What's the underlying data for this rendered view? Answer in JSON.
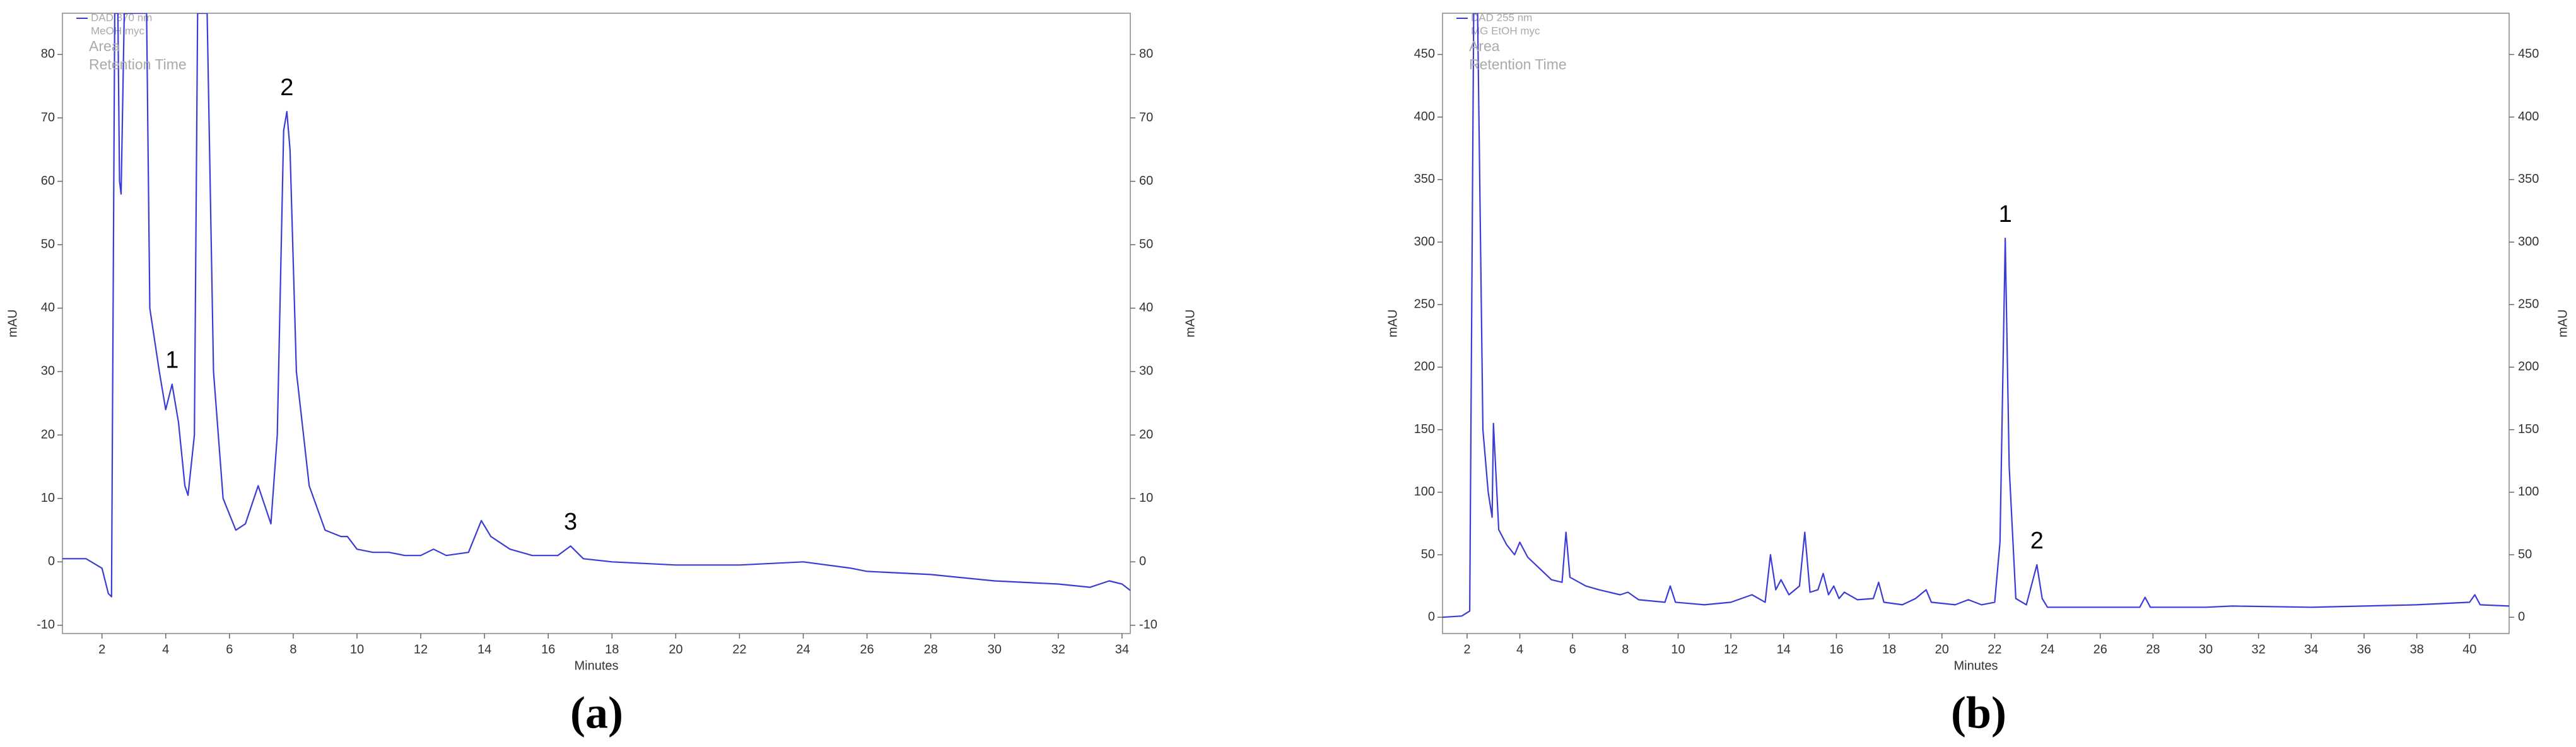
{
  "chart_data": [
    {
      "type": "line",
      "panel_label": "(a)",
      "y_label": "mAU",
      "x_label": "Minutes",
      "info": [
        "Area",
        "Retention Time"
      ],
      "xlim": [
        0.76,
        34.26
      ],
      "ylim": [
        -11.3,
        86.5
      ],
      "xticks": [
        2,
        4,
        6,
        8,
        10,
        12,
        14,
        16,
        18,
        20,
        22,
        24,
        26,
        28,
        30,
        32,
        34
      ],
      "yticks": [
        -10,
        0,
        10,
        20,
        30,
        40,
        50,
        60,
        70,
        80
      ],
      "x": [
        0.76,
        1.5,
        2.0,
        2.2,
        2.3,
        2.4,
        2.5,
        2.55,
        2.6,
        2.7,
        3.2,
        3.4,
        3.5,
        3.8,
        4.0,
        4.2,
        4.4,
        4.6,
        4.7,
        4.9,
        5.0,
        5.3,
        5.5,
        5.8,
        6.2,
        6.5,
        6.9,
        7.1,
        7.3,
        7.5,
        7.7,
        7.8,
        7.9,
        8.1,
        8.5,
        9.0,
        9.5,
        9.7,
        10.0,
        10.5,
        11,
        11.5,
        12,
        12.4,
        12.8,
        13.5,
        13.9,
        14.2,
        14.8,
        15.5,
        16.3,
        16.7,
        17.1,
        18,
        20,
        22,
        24,
        25.5,
        26,
        28,
        30,
        32,
        33,
        33.6,
        34,
        34.26
      ],
      "series": [
        {
          "name": "DAD 370 nm",
          "sample": "MeOH myc",
          "color": "#3b3bd6",
          "values": [
            0.5,
            0.5,
            -1,
            -5,
            -5.5,
            86.5,
            86.5,
            60,
            58,
            86.5,
            86.5,
            86.5,
            40,
            30,
            24,
            28,
            22,
            12,
            10.5,
            20,
            86.5,
            86.5,
            30,
            10,
            5,
            6,
            12,
            9,
            6,
            20,
            68,
            71,
            65,
            30,
            12,
            5,
            4,
            4,
            2,
            1.5,
            1.5,
            1,
            1,
            2,
            1,
            1.5,
            6.5,
            4,
            2,
            1,
            1,
            2.5,
            0.5,
            0,
            -0.5,
            -0.5,
            0,
            -1,
            -1.5,
            -2,
            -3,
            -3.5,
            -4,
            -3,
            -3.5,
            -4.5
          ]
        }
      ],
      "peak_labels": [
        {
          "text": "1",
          "x": 4.2,
          "y": 28
        },
        {
          "text": "2",
          "x": 7.8,
          "y": 71
        },
        {
          "text": "3",
          "x": 16.7,
          "y": 2.5
        }
      ]
    },
    {
      "type": "line",
      "panel_label": "(b)",
      "y_label": "mAU",
      "x_label": "Minutes",
      "info": [
        "Area",
        "Retention Time"
      ],
      "xlim": [
        1.07,
        41.5
      ],
      "ylim": [
        -13,
        483
      ],
      "xticks": [
        2,
        4,
        6,
        8,
        10,
        12,
        14,
        16,
        18,
        20,
        22,
        24,
        26,
        28,
        30,
        32,
        34,
        36,
        38,
        40
      ],
      "yticks": [
        0,
        50,
        100,
        150,
        200,
        250,
        300,
        350,
        400,
        450
      ],
      "x": [
        1.07,
        1.8,
        2.1,
        2.25,
        2.4,
        2.6,
        2.8,
        2.95,
        3.0,
        3.2,
        3.5,
        3.8,
        4,
        4.3,
        4.8,
        5.2,
        5.6,
        5.75,
        5.9,
        6.5,
        7,
        7.8,
        8.1,
        8.5,
        9.5,
        9.7,
        9.9,
        11,
        12,
        12.8,
        13.3,
        13.5,
        13.7,
        13.9,
        14.2,
        14.6,
        14.8,
        15,
        15.3,
        15.5,
        15.7,
        15.9,
        16.1,
        16.3,
        16.8,
        17.4,
        17.6,
        17.8,
        18.5,
        19,
        19.4,
        19.6,
        20.5,
        21,
        21.5,
        22.0,
        22.2,
        22.4,
        22.55,
        22.8,
        23.2,
        23.6,
        23.8,
        24,
        26,
        27.5,
        27.7,
        27.9,
        30,
        31,
        34,
        36,
        38,
        40,
        40.2,
        40.4,
        41.5
      ],
      "series": [
        {
          "name": "DAD 255 nm",
          "sample": "MG EtOH myc",
          "color": "#3b3bd6",
          "values": [
            0,
            1,
            5,
            483,
            483,
            150,
            100,
            80,
            155,
            70,
            58,
            50,
            60,
            48,
            38,
            30,
            28,
            68,
            32,
            25,
            22,
            18,
            20,
            14,
            12,
            25,
            12,
            10,
            12,
            18,
            12,
            50,
            22,
            30,
            18,
            25,
            68,
            20,
            22,
            35,
            18,
            25,
            15,
            20,
            14,
            15,
            28,
            12,
            10,
            15,
            22,
            12,
            10,
            14,
            10,
            12,
            60,
            303,
            120,
            15,
            10,
            42,
            15,
            8,
            8,
            8,
            16,
            8,
            8,
            9,
            8,
            9,
            10,
            12,
            18,
            10,
            9
          ]
        }
      ],
      "peak_labels": [
        {
          "text": "1",
          "x": 22.4,
          "y": 303
        },
        {
          "text": "2",
          "x": 23.6,
          "y": 42
        }
      ]
    }
  ]
}
